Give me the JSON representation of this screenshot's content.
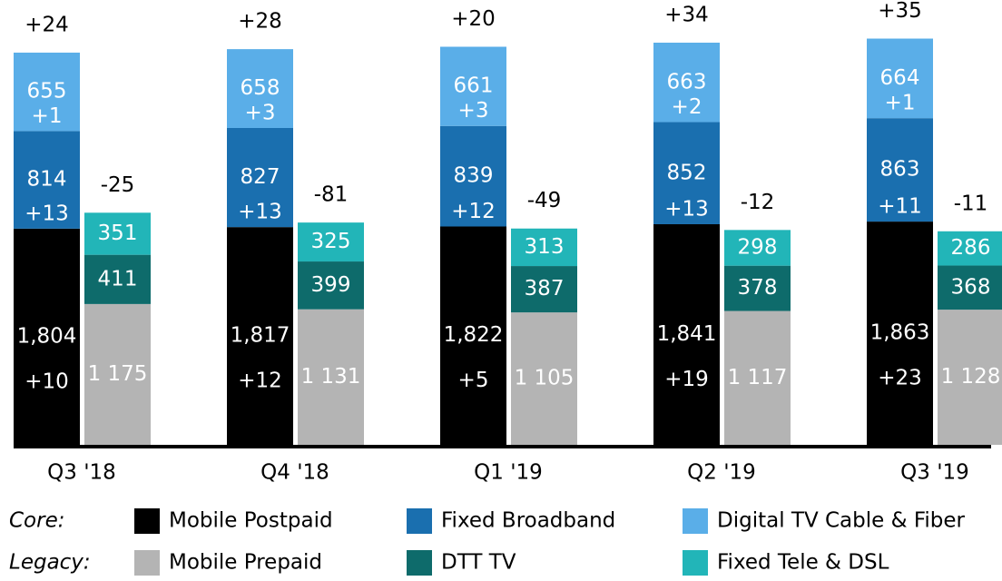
{
  "chart_data": {
    "type": "stacked_bar_pair",
    "categories": [
      "Q3 '18",
      "Q4 '18",
      "Q1 '19",
      "Q2 '19",
      "Q3 '19"
    ],
    "stacks": [
      {
        "name": "Core:",
        "change_labels": [
          "+24",
          "+28",
          "+20",
          "+34",
          "+35"
        ]
      },
      {
        "name": "Legacy:",
        "change_labels": [
          "-25",
          "-81",
          "-49",
          "-12",
          "-11"
        ]
      }
    ],
    "series": [
      {
        "name": "Mobile Postpaid",
        "stack": 0,
        "color": "#000000",
        "values": [
          1804,
          1817,
          1822,
          1841,
          1863
        ],
        "value_labels": [
          "1,804",
          "1,817",
          "1,822",
          "1,841",
          "1,863"
        ],
        "change_labels": [
          "+10",
          "+12",
          "+5",
          "+19",
          "+23"
        ]
      },
      {
        "name": "Fixed Broadband",
        "stack": 0,
        "color": "#1a6faf",
        "values": [
          814,
          827,
          839,
          852,
          863
        ],
        "change_labels": [
          "+13",
          "+13",
          "+12",
          "+13",
          "+11"
        ]
      },
      {
        "name": "Digital TV Cable & Fiber",
        "stack": 0,
        "color": "#5aaee8",
        "values": [
          655,
          658,
          661,
          663,
          664
        ],
        "change_labels": [
          "+1",
          "+3",
          "+3",
          "+2",
          "+1"
        ]
      },
      {
        "name": "Mobile Prepaid",
        "stack": 1,
        "color": "#b4b4b4",
        "values": [
          1175,
          1131,
          1105,
          1117,
          1128
        ],
        "value_labels": [
          "1 175",
          "1 131",
          "1 105",
          "1 117",
          "1 128"
        ]
      },
      {
        "name": "DTT TV",
        "stack": 1,
        "color": "#0e6b6b",
        "values": [
          411,
          399,
          387,
          378,
          368
        ]
      },
      {
        "name": "Fixed Tele & DSL",
        "stack": 1,
        "color": "#22b5b8",
        "values": [
          351,
          325,
          313,
          298,
          286
        ]
      }
    ]
  }
}
